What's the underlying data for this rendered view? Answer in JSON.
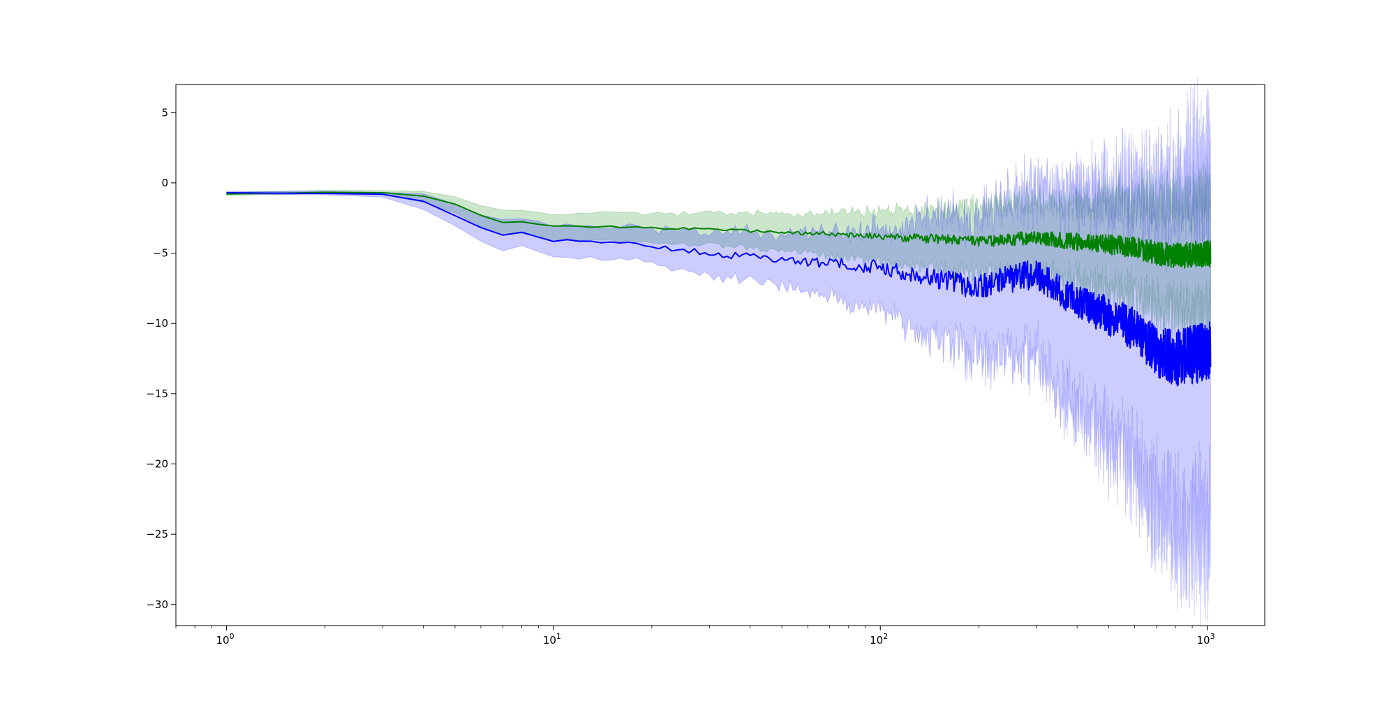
{
  "chart_data": {
    "type": "line",
    "xscale": "log",
    "xlim": [
      0.7,
      1500
    ],
    "ylim": [
      -31.5,
      7
    ],
    "x_major_ticks": [
      1,
      10,
      100,
      1000
    ],
    "x_tick_labels": [
      {
        "base": "10",
        "exp": "0"
      },
      {
        "base": "10",
        "exp": "1"
      },
      {
        "base": "10",
        "exp": "2"
      },
      {
        "base": "10",
        "exp": "3"
      }
    ],
    "y_ticks": [
      5,
      0,
      -5,
      -10,
      -15,
      -20,
      -25,
      -30
    ],
    "y_tick_labels": [
      "5",
      "0",
      "−5",
      "−10",
      "−15",
      "−20",
      "−25",
      "−30"
    ],
    "grid": false,
    "x_end": 1024,
    "series": [
      {
        "color": "#008000",
        "band_opacity": 0.2,
        "mean": [
          [
            1,
            -0.7
          ],
          [
            2,
            -0.7
          ],
          [
            3,
            -0.7
          ],
          [
            4,
            -1.0
          ],
          [
            5,
            -1.6
          ],
          [
            6,
            -2.3
          ],
          [
            7,
            -2.8
          ],
          [
            8,
            -2.8
          ],
          [
            10,
            -3.0
          ],
          [
            15,
            -3.1
          ],
          [
            20,
            -3.2
          ],
          [
            30,
            -3.3
          ],
          [
            50,
            -3.5
          ],
          [
            100,
            -3.8
          ],
          [
            150,
            -4.0
          ],
          [
            200,
            -4.2
          ],
          [
            250,
            -4.0
          ],
          [
            300,
            -3.9
          ],
          [
            400,
            -4.2
          ],
          [
            500,
            -4.4
          ],
          [
            600,
            -4.6
          ],
          [
            700,
            -5.0
          ],
          [
            800,
            -5.2
          ],
          [
            1024,
            -5.0
          ]
        ],
        "noise": [
          [
            50,
            0.1
          ],
          [
            100,
            0.25
          ],
          [
            200,
            0.4
          ],
          [
            300,
            0.5
          ],
          [
            500,
            0.7
          ],
          [
            800,
            0.9
          ],
          [
            1024,
            1.0
          ]
        ],
        "band_width": [
          [
            1,
            0.1
          ],
          [
            3,
            0.15
          ],
          [
            5,
            0.6
          ],
          [
            7,
            0.8
          ],
          [
            10,
            0.9
          ],
          [
            20,
            1.0
          ],
          [
            50,
            1.3
          ],
          [
            100,
            1.8
          ],
          [
            200,
            2.4
          ],
          [
            400,
            2.8
          ],
          [
            600,
            3.5
          ],
          [
            1024,
            4.5
          ]
        ],
        "band_noise": [
          [
            1,
            0
          ],
          [
            50,
            0.2
          ],
          [
            100,
            0.4
          ],
          [
            200,
            0.7
          ],
          [
            400,
            1.0
          ],
          [
            600,
            1.6
          ],
          [
            1024,
            2.0
          ]
        ]
      },
      {
        "color": "#0000ff",
        "band_opacity": 0.2,
        "mean": [
          [
            1,
            -0.7
          ],
          [
            2,
            -0.75
          ],
          [
            3,
            -0.8
          ],
          [
            4,
            -1.3
          ],
          [
            5,
            -2.4
          ],
          [
            6,
            -3.2
          ],
          [
            7,
            -3.7
          ],
          [
            8,
            -3.6
          ],
          [
            10,
            -4.1
          ],
          [
            15,
            -4.2
          ],
          [
            20,
            -4.5
          ],
          [
            30,
            -5.0
          ],
          [
            50,
            -5.5
          ],
          [
            100,
            -6.0
          ],
          [
            150,
            -6.8
          ],
          [
            200,
            -7.5
          ],
          [
            250,
            -6.8
          ],
          [
            300,
            -6.5
          ],
          [
            400,
            -8.5
          ],
          [
            500,
            -9.5
          ],
          [
            600,
            -10.5
          ],
          [
            700,
            -12.0
          ],
          [
            800,
            -12.5
          ],
          [
            1024,
            -12.0
          ]
        ],
        "noise": [
          [
            1,
            0
          ],
          [
            10,
            0.1
          ],
          [
            20,
            0.15
          ],
          [
            50,
            0.3
          ],
          [
            100,
            0.5
          ],
          [
            200,
            0.9
          ],
          [
            400,
            1.2
          ],
          [
            600,
            1.6
          ],
          [
            800,
            2.0
          ],
          [
            1024,
            2.2
          ]
        ],
        "band_width": [
          [
            1,
            0.1
          ],
          [
            3,
            0.15
          ],
          [
            5,
            0.8
          ],
          [
            7,
            1.0
          ],
          [
            10,
            1.1
          ],
          [
            20,
            1.2
          ],
          [
            50,
            1.9
          ],
          [
            100,
            2.8
          ],
          [
            150,
            4.5
          ],
          [
            200,
            5.0
          ],
          [
            250,
            5.5
          ],
          [
            300,
            6.0
          ],
          [
            400,
            7.5
          ],
          [
            600,
            10.0
          ],
          [
            800,
            12.0
          ],
          [
            1024,
            13.5
          ]
        ],
        "band_noise": [
          [
            1,
            0
          ],
          [
            20,
            0.2
          ],
          [
            50,
            0.4
          ],
          [
            100,
            0.8
          ],
          [
            200,
            1.5
          ],
          [
            400,
            2.5
          ],
          [
            600,
            3.5
          ],
          [
            800,
            4.5
          ],
          [
            1024,
            5.0
          ]
        ]
      }
    ]
  }
}
